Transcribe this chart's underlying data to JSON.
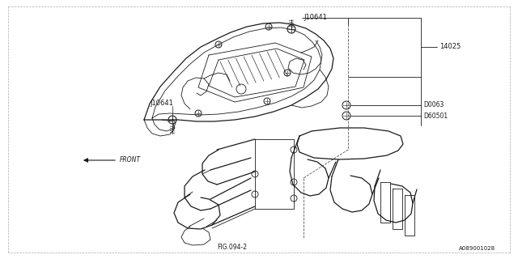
{
  "bg_color": "#ffffff",
  "line_color": "#1a1a1a",
  "dashed_color": "#555555",
  "thin_lw": 0.6,
  "medium_lw": 0.9,
  "bold_lw": 1.1,
  "font_size_label": 6.0,
  "font_size_small": 5.5,
  "font_size_tiny": 5.0,
  "labels": {
    "J10641_left": "J10641",
    "J10641_right": "J10641",
    "part_14025": "14025",
    "D0063": "D0063",
    "D60501": "D60501",
    "FIG094_2": "FIG.094-2",
    "FRONT": "FRONT",
    "part_num": "A089001028"
  }
}
